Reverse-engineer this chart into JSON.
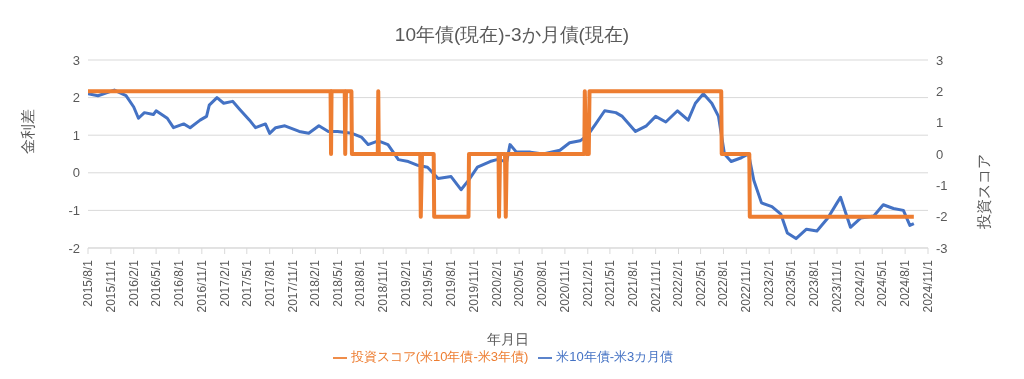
{
  "chart_data": {
    "type": "line",
    "title": "10年債(現在)-3か月債(現在)",
    "xlabel": "年月日",
    "ylabel": "金利差",
    "y2label": "投資スコア",
    "xlim": [
      "2015-08-01",
      "2024-11-01"
    ],
    "xticks": [
      {
        "value": "2015-08-01",
        "label": "2015/8/1"
      },
      {
        "value": "2015-11-01",
        "label": "2015/11/1"
      },
      {
        "value": "2016-02-01",
        "label": "2016/2/1"
      },
      {
        "value": "2016-05-01",
        "label": "2016/5/1"
      },
      {
        "value": "2016-08-01",
        "label": "2016/8/1"
      },
      {
        "value": "2016-11-01",
        "label": "2016/11/1"
      },
      {
        "value": "2017-02-01",
        "label": "2017/2/1"
      },
      {
        "value": "2017-05-01",
        "label": "2017/5/1"
      },
      {
        "value": "2017-08-01",
        "label": "2017/8/1"
      },
      {
        "value": "2017-11-01",
        "label": "2017/11/1"
      },
      {
        "value": "2018-02-01",
        "label": "2018/2/1"
      },
      {
        "value": "2018-05-01",
        "label": "2018/5/1"
      },
      {
        "value": "2018-08-01",
        "label": "2018/8/1"
      },
      {
        "value": "2018-11-01",
        "label": "2018/11/1"
      },
      {
        "value": "2019-02-01",
        "label": "2019/2/1"
      },
      {
        "value": "2019-05-01",
        "label": "2019/5/1"
      },
      {
        "value": "2019-08-01",
        "label": "2019/8/1"
      },
      {
        "value": "2019-11-01",
        "label": "2019/11/1"
      },
      {
        "value": "2020-02-01",
        "label": "2020/2/1"
      },
      {
        "value": "2020-05-01",
        "label": "2020/5/1"
      },
      {
        "value": "2020-08-01",
        "label": "2020/8/1"
      },
      {
        "value": "2020-11-01",
        "label": "2020/11/1"
      },
      {
        "value": "2021-02-01",
        "label": "2021/2/1"
      },
      {
        "value": "2021-05-01",
        "label": "2021/5/1"
      },
      {
        "value": "2021-08-01",
        "label": "2021/8/1"
      },
      {
        "value": "2021-11-01",
        "label": "2021/11/1"
      },
      {
        "value": "2022-02-01",
        "label": "2022/2/1"
      },
      {
        "value": "2022-05-01",
        "label": "2022/5/1"
      },
      {
        "value": "2022-08-01",
        "label": "2022/8/1"
      },
      {
        "value": "2022-11-01",
        "label": "2022/11/1"
      },
      {
        "value": "2023-02-01",
        "label": "2023/2/1"
      },
      {
        "value": "2023-05-01",
        "label": "2023/5/1"
      },
      {
        "value": "2023-08-01",
        "label": "2023/8/1"
      },
      {
        "value": "2023-11-01",
        "label": "2023/11/1"
      },
      {
        "value": "2024-02-01",
        "label": "2024/2/1"
      },
      {
        "value": "2024-05-01",
        "label": "2024/5/1"
      },
      {
        "value": "2024-08-01",
        "label": "2024/8/1"
      },
      {
        "value": "2024-11-01",
        "label": "2024/11/1"
      }
    ],
    "ylim": [
      -2,
      3
    ],
    "yticks": [
      -2,
      -1,
      0,
      1,
      2,
      3
    ],
    "y2lim": [
      -3,
      3
    ],
    "y2ticks": [
      -3,
      -2,
      -1,
      0,
      1,
      2,
      3
    ],
    "grid": "y",
    "legend": "bottom",
    "marker": "none",
    "series": [
      {
        "name": "米10年債-米3カ月債",
        "color": "#4472c4",
        "x": [
          "2015-08-01",
          "2015-09-10",
          "2015-11-15",
          "2016-01-01",
          "2016-02-01",
          "2016-02-20",
          "2016-03-15",
          "2016-04-20",
          "2016-05-01",
          "2016-06-15",
          "2016-07-10",
          "2016-08-20",
          "2016-09-15",
          "2016-10-25",
          "2016-11-20",
          "2016-12-01",
          "2017-01-01",
          "2017-01-28",
          "2017-03-05",
          "2017-04-01",
          "2017-05-12",
          "2017-06-05",
          "2017-07-15",
          "2017-08-01",
          "2017-08-25",
          "2017-10-01",
          "2017-11-28",
          "2018-01-05",
          "2018-02-15",
          "2018-03-25",
          "2018-05-01",
          "2018-06-28",
          "2018-08-05",
          "2018-09-01",
          "2018-10-12",
          "2018-11-20",
          "2019-01-01",
          "2019-02-10",
          "2019-03-20",
          "2019-04-28",
          "2019-06-10",
          "2019-08-01",
          "2019-09-10",
          "2019-10-10",
          "2019-11-15",
          "2020-01-05",
          "2020-02-01",
          "2020-03-12",
          "2020-03-25",
          "2020-04-20",
          "2020-06-15",
          "2020-08-05",
          "2020-10-12",
          "2020-11-20",
          "2021-01-01",
          "2021-02-01",
          "2021-03-05",
          "2021-04-10",
          "2021-05-25",
          "2021-06-20",
          "2021-08-12",
          "2021-09-25",
          "2021-11-01",
          "2021-12-12",
          "2022-01-28",
          "2022-03-12",
          "2022-04-10",
          "2022-05-12",
          "2022-06-15",
          "2022-07-12",
          "2022-08-05",
          "2022-09-01",
          "2022-10-12",
          "2022-11-10",
          "2022-12-01",
          "2023-01-01",
          "2023-02-12",
          "2023-03-20",
          "2023-04-15",
          "2023-05-20",
          "2023-07-01",
          "2023-08-12",
          "2023-09-25",
          "2023-11-01",
          "2023-11-15",
          "2023-12-25",
          "2024-02-05",
          "2024-03-28",
          "2024-05-05",
          "2024-06-15",
          "2024-07-25",
          "2024-08-20",
          "2024-09-05"
        ],
        "values": [
          2.1,
          2.05,
          2.2,
          2.05,
          1.75,
          1.45,
          1.6,
          1.55,
          1.65,
          1.45,
          1.2,
          1.3,
          1.2,
          1.4,
          1.5,
          1.8,
          2.0,
          1.85,
          1.9,
          1.7,
          1.4,
          1.2,
          1.3,
          1.05,
          1.2,
          1.25,
          1.1,
          1.05,
          1.25,
          1.1,
          1.1,
          1.05,
          0.95,
          0.75,
          0.85,
          0.75,
          0.35,
          0.3,
          0.2,
          0.15,
          -0.15,
          -0.1,
          -0.45,
          -0.2,
          0.15,
          0.3,
          0.35,
          0.3,
          0.75,
          0.55,
          0.55,
          0.5,
          0.6,
          0.8,
          0.85,
          1.0,
          1.3,
          1.65,
          1.6,
          1.5,
          1.1,
          1.25,
          1.5,
          1.35,
          1.65,
          1.4,
          1.85,
          2.1,
          1.85,
          1.5,
          0.5,
          0.3,
          0.4,
          0.5,
          -0.2,
          -0.8,
          -0.9,
          -1.1,
          -1.6,
          -1.75,
          -1.5,
          -1.55,
          -1.2,
          -0.8,
          -0.65,
          -1.45,
          -1.2,
          -1.15,
          -0.85,
          -0.95,
          -1.0,
          -1.4,
          -1.35
        ]
      },
      {
        "name": "投資スコア(米10年債-米3年債)",
        "color": "#ed7d31",
        "axis": "y2",
        "x": [
          "2015-08-01",
          "2018-04-03",
          "2018-04-05",
          "2018-04-07",
          "2018-05-30",
          "2018-06-01",
          "2018-06-04",
          "2018-06-26",
          "2018-06-28",
          "2018-10-10",
          "2018-10-12",
          "2018-10-14",
          "2019-03-30",
          "2019-04-01",
          "2019-04-06",
          "2019-05-23",
          "2019-05-25",
          "2019-10-10",
          "2019-10-12",
          "2020-02-08",
          "2020-02-10",
          "2020-02-14",
          "2020-03-05",
          "2020-03-08",
          "2020-03-12",
          "2021-01-18",
          "2021-01-20",
          "2021-01-25",
          "2021-02-05",
          "2021-02-08",
          "2022-07-23",
          "2022-07-25",
          "2022-11-13",
          "2022-11-15",
          "2024-09-05"
        ],
        "values": [
          2,
          2,
          0,
          2,
          2,
          0,
          2,
          2,
          0,
          0,
          2,
          0,
          0,
          -2,
          0,
          0,
          -2,
          -2,
          0,
          0,
          -2,
          0,
          0,
          -2,
          0,
          0,
          2,
          0,
          0,
          2,
          2,
          0,
          0,
          -2,
          -2
        ]
      }
    ]
  }
}
